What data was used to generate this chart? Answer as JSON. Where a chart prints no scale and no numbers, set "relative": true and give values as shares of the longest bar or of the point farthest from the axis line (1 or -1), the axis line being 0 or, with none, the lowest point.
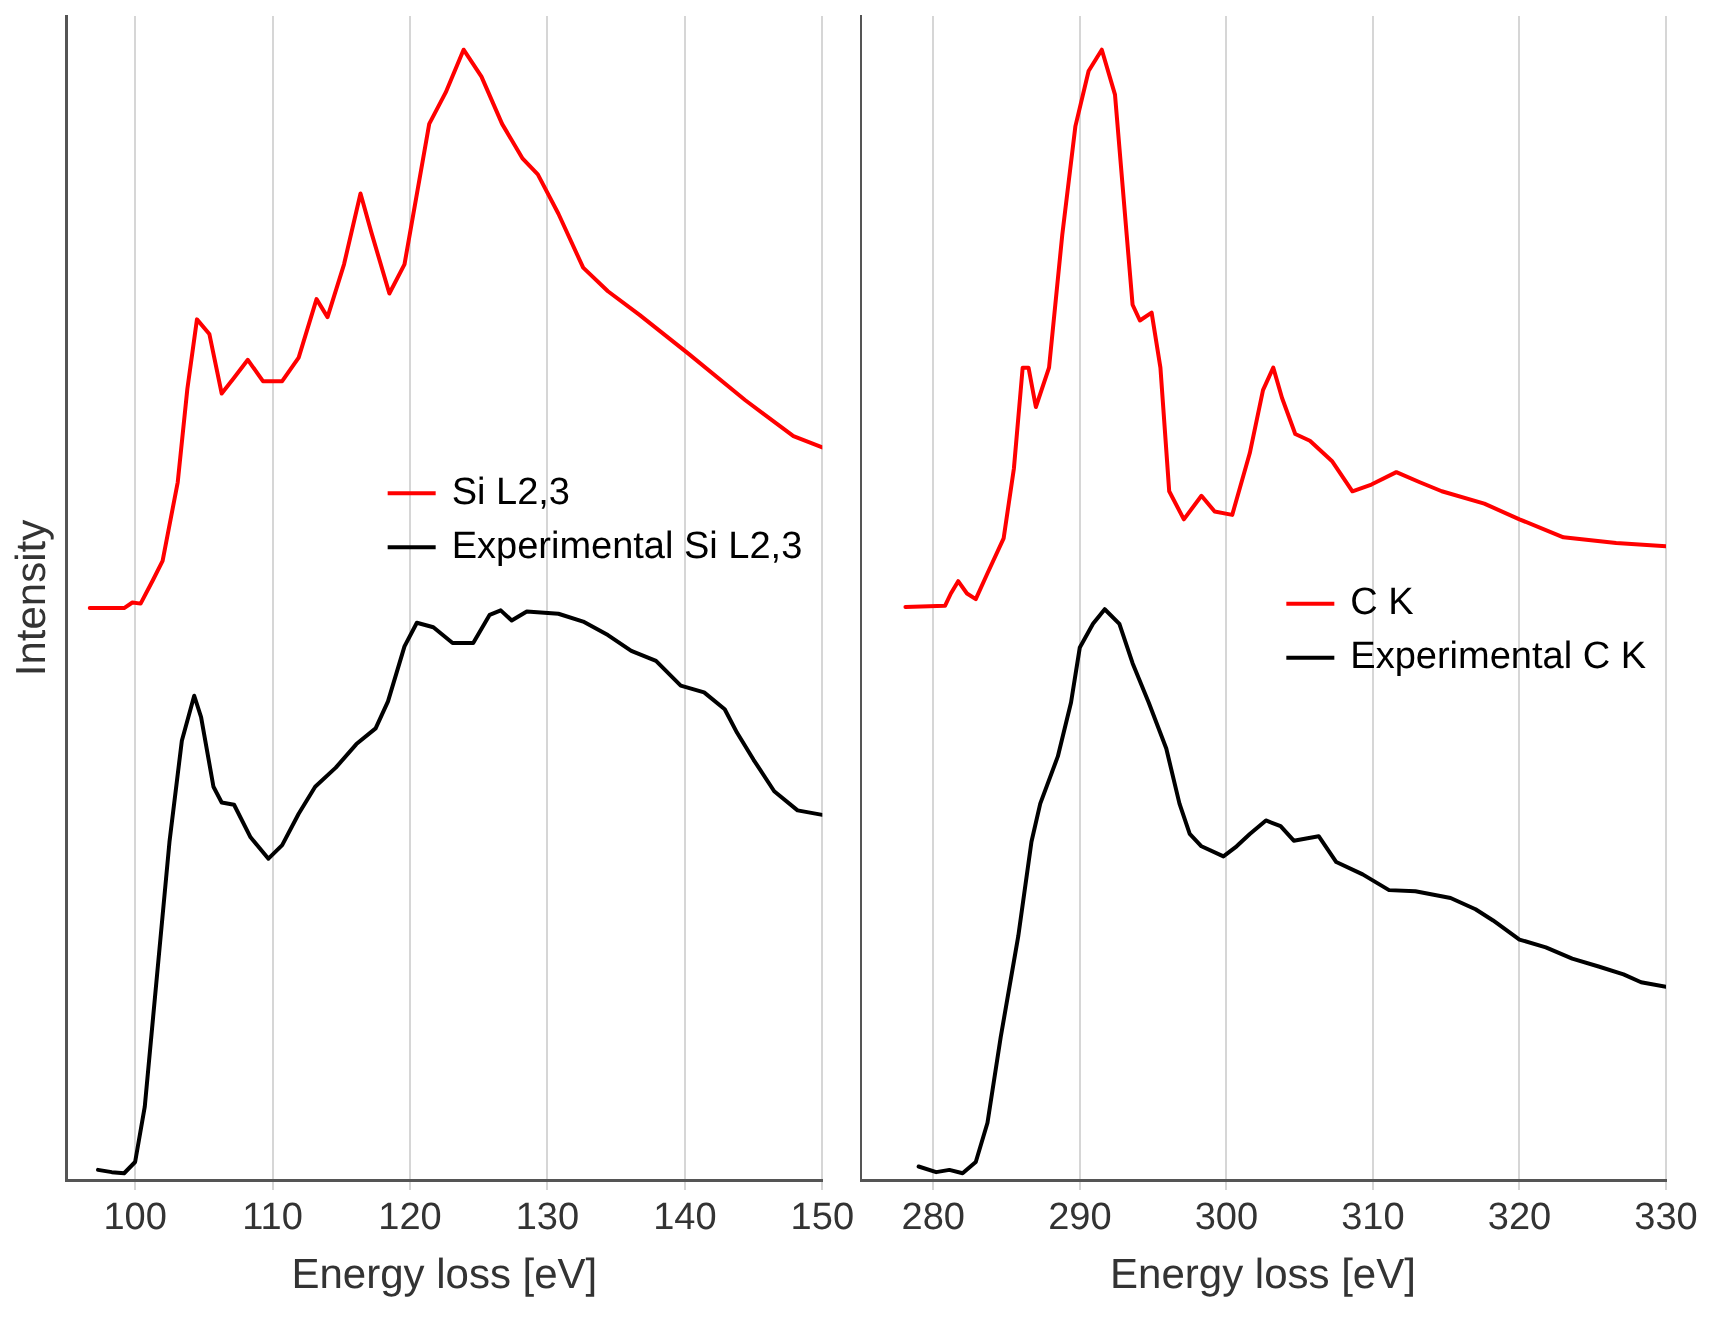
{
  "chart_data": [
    {
      "type": "line",
      "relative": true,
      "xlabel": "Energy loss [eV]",
      "ylabel": "Intensity",
      "xlim": [
        95,
        150
      ],
      "xticks": [
        100,
        110,
        120,
        130,
        140,
        150
      ],
      "grid": "x",
      "legend": "center right",
      "marker": "none",
      "line_style": "solid",
      "series": [
        {
          "name": "Si L2,3",
          "color": "#ff0000",
          "x": [
            96.7,
            99.2,
            99.8,
            100.4,
            101.3,
            102.0,
            103.1,
            103.8,
            104.5,
            105.4,
            106.3,
            107.2,
            108.2,
            109.3,
            110.7,
            111.9,
            113.2,
            114.0,
            115.2,
            116.4,
            117.2,
            118.5,
            119.6,
            121.4,
            122.6,
            123.9,
            125.2,
            126.7,
            128.2,
            129.3,
            130.8,
            132.6,
            134.4,
            136.7,
            140.3,
            144.4,
            147.9,
            150.0
          ],
          "values": [
            0.503,
            0.503,
            0.508,
            0.507,
            0.528,
            0.545,
            0.615,
            0.698,
            0.76,
            0.747,
            0.694,
            0.708,
            0.724,
            0.705,
            0.705,
            0.726,
            0.778,
            0.762,
            0.809,
            0.872,
            0.837,
            0.783,
            0.809,
            0.934,
            0.962,
            1.0,
            0.976,
            0.934,
            0.903,
            0.889,
            0.854,
            0.806,
            0.785,
            0.764,
            0.729,
            0.688,
            0.656,
            0.646
          ]
        },
        {
          "name": "Experimental Si L2,3",
          "color": "#000000",
          "x": [
            97.3,
            98.3,
            99.2,
            100.0,
            100.7,
            101.6,
            102.5,
            103.4,
            104.3,
            104.8,
            105.7,
            106.3,
            107.2,
            108.4,
            109.7,
            110.7,
            111.9,
            113.1,
            114.6,
            116.1,
            117.5,
            118.4,
            119.6,
            120.5,
            121.7,
            123.1,
            124.6,
            125.8,
            126.6,
            127.4,
            128.5,
            130.8,
            132.6,
            134.4,
            136.1,
            137.9,
            139.7,
            141.4,
            142.9,
            143.8,
            145.0,
            146.5,
            148.2,
            150.0
          ],
          "values": [
            0.003,
            0.001,
            0,
            0.01,
            0.059,
            0.177,
            0.295,
            0.385,
            0.425,
            0.406,
            0.344,
            0.33,
            0.328,
            0.299,
            0.28,
            0.292,
            0.32,
            0.344,
            0.361,
            0.382,
            0.396,
            0.42,
            0.469,
            0.49,
            0.486,
            0.472,
            0.472,
            0.497,
            0.501,
            0.492,
            0.5,
            0.498,
            0.491,
            0.479,
            0.465,
            0.456,
            0.434,
            0.428,
            0.413,
            0.392,
            0.368,
            0.34,
            0.323,
            0.319
          ]
        }
      ]
    },
    {
      "type": "line",
      "relative": true,
      "xlabel": "Energy loss [eV]",
      "xlim": [
        275,
        330
      ],
      "xticks": [
        280,
        290,
        300,
        310,
        320,
        330
      ],
      "grid": "x",
      "legend": "right",
      "marker": "none",
      "line_style": "solid",
      "series": [
        {
          "name": "C K",
          "color": "#ff0000",
          "x": [
            278.1,
            280.8,
            281.2,
            281.7,
            282.3,
            282.9,
            283.7,
            284.8,
            285.5,
            286.1,
            286.5,
            287.0,
            287.9,
            288.8,
            289.7,
            290.6,
            291.5,
            292.4,
            293.2,
            293.6,
            294.1,
            294.9,
            295.5,
            296.1,
            297.1,
            298.3,
            299.2,
            300.4,
            301.6,
            302.5,
            303.2,
            303.8,
            304.7,
            305.7,
            307.2,
            308.6,
            309.9,
            311.6,
            313.2,
            314.7,
            317.6,
            320.0,
            323.0,
            326.6,
            330.0
          ],
          "values": [
            0.504,
            0.505,
            0.516,
            0.527,
            0.516,
            0.511,
            0.534,
            0.565,
            0.627,
            0.717,
            0.717,
            0.682,
            0.717,
            0.835,
            0.932,
            0.981,
            1.0,
            0.96,
            0.835,
            0.773,
            0.759,
            0.766,
            0.717,
            0.607,
            0.582,
            0.603,
            0.589,
            0.586,
            0.641,
            0.697,
            0.717,
            0.69,
            0.658,
            0.652,
            0.634,
            0.607,
            0.613,
            0.624,
            0.615,
            0.607,
            0.596,
            0.582,
            0.566,
            0.561,
            0.558
          ]
        },
        {
          "name": "Experimental C K",
          "color": "#000000",
          "x": [
            279.0,
            280.2,
            281.1,
            282.0,
            282.9,
            283.7,
            284.6,
            285.8,
            286.7,
            287.3,
            288.5,
            289.4,
            290.0,
            290.9,
            291.7,
            292.7,
            293.6,
            294.7,
            295.9,
            296.8,
            297.5,
            298.3,
            299.8,
            300.7,
            301.6,
            302.7,
            303.7,
            304.6,
            306.3,
            307.5,
            309.3,
            311.1,
            312.9,
            315.3,
            317.0,
            318.2,
            320.0,
            321.8,
            323.6,
            325.4,
            327.1,
            328.3,
            330.0
          ],
          "values": [
            0.006,
            0.001,
            0.003,
            0,
            0.01,
            0.045,
            0.121,
            0.211,
            0.295,
            0.329,
            0.371,
            0.419,
            0.468,
            0.489,
            0.502,
            0.489,
            0.454,
            0.419,
            0.378,
            0.329,
            0.302,
            0.291,
            0.282,
            0.291,
            0.302,
            0.314,
            0.309,
            0.296,
            0.3,
            0.277,
            0.266,
            0.252,
            0.251,
            0.245,
            0.235,
            0.225,
            0.208,
            0.201,
            0.191,
            0.184,
            0.177,
            0.17,
            0.166
          ]
        }
      ]
    }
  ]
}
